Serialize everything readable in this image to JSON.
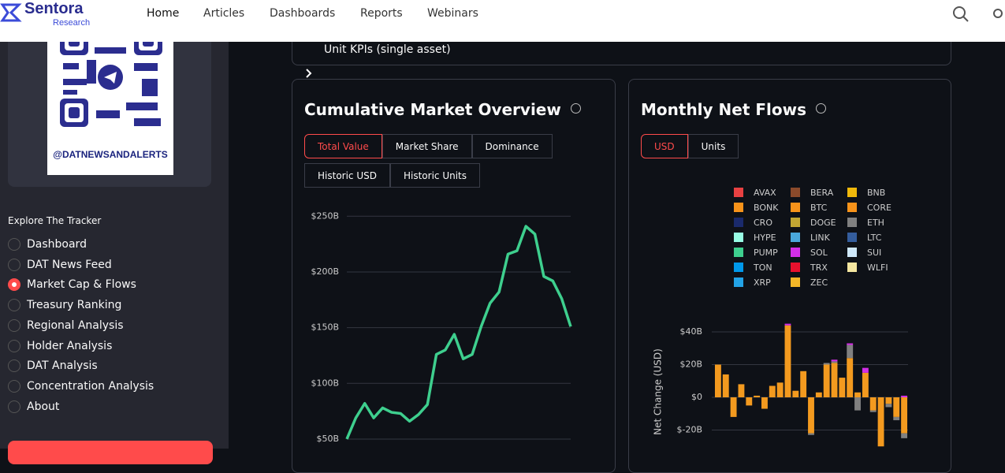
{
  "nav": {
    "brand": "Sentora",
    "sub": "Research",
    "links": [
      "Home",
      "Articles",
      "Dashboards",
      "Reports",
      "Webinars"
    ],
    "active": 0
  },
  "sidebar": {
    "handle": "@DATNEWSANDALERTS",
    "heading": "Explore The Tracker",
    "items": [
      "Dashboard",
      "DAT News Feed",
      "Market Cap & Flows",
      "Treasury Ranking",
      "Regional Analysis",
      "Holder Analysis",
      "DAT Analysis",
      "Concentration Analysis",
      "About"
    ],
    "selected": 2
  },
  "section": {
    "label": "Unit KPIs (single asset)"
  },
  "chart_data": [
    {
      "type": "line",
      "title": "Cumulative Market Overview",
      "tabs": [
        "Total Value",
        "Market Share",
        "Dominance",
        "Historic USD",
        "Historic Units"
      ],
      "active_tab": 0,
      "categories": [
        null,
        null,
        null,
        null,
        null,
        null,
        null,
        null,
        null,
        null,
        null,
        null,
        null,
        null,
        null,
        null,
        null,
        null,
        null,
        null,
        null,
        null,
        null,
        null,
        null,
        null
      ],
      "values": [
        50,
        69,
        82,
        69,
        78,
        74,
        73,
        66,
        72,
        81,
        126,
        130,
        144,
        122,
        126,
        151,
        172,
        182,
        216,
        219,
        241,
        234,
        196,
        192,
        176,
        151
      ],
      "color": "#3ecf8e",
      "ylim": [
        48,
        258
      ],
      "yticks": [
        {
          "value": 50,
          "label": "$50B"
        },
        {
          "value": 100,
          "label": "$100B"
        },
        {
          "value": 150,
          "label": "$150B"
        },
        {
          "value": 200,
          "label": "$200B"
        },
        {
          "value": 250,
          "label": "$250B"
        }
      ],
      "grid": true
    },
    {
      "type": "stacked_bar",
      "title": "Monthly Net Flows",
      "tabs": [
        "USD",
        "Units"
      ],
      "active_tab": 0,
      "y_label": "Net Change (USD)",
      "legend": [
        {
          "name": "AVAX",
          "color": "#e84142"
        },
        {
          "name": "BERA",
          "color": "#8b4a2b"
        },
        {
          "name": "BNB",
          "color": "#f0b90b"
        },
        {
          "name": "BONK",
          "color": "#f7931a"
        },
        {
          "name": "BTC",
          "color": "#f7931a"
        },
        {
          "name": "CORE",
          "color": "#f7931a"
        },
        {
          "name": "CRO",
          "color": "#1a2a6c"
        },
        {
          "name": "DOGE",
          "color": "#c2a633"
        },
        {
          "name": "ETH",
          "color": "#808080"
        },
        {
          "name": "HYPE",
          "color": "#97fce4"
        },
        {
          "name": "LINK",
          "color": "#4aa8dc"
        },
        {
          "name": "LTC",
          "color": "#345d9d"
        },
        {
          "name": "PUMP",
          "color": "#3ecf8e"
        },
        {
          "name": "SOL",
          "color": "#d42ee8"
        },
        {
          "name": "SUI",
          "color": "#cfe8fa"
        },
        {
          "name": "TON",
          "color": "#0098ea"
        },
        {
          "name": "TRX",
          "color": "#e8112d"
        },
        {
          "name": "WLFI",
          "color": "#f5e7a0"
        },
        {
          "name": "XRP",
          "color": "#23a3e6"
        },
        {
          "name": "ZEC",
          "color": "#f4b728"
        }
      ],
      "categories": [
        null,
        null,
        null,
        null,
        null,
        null,
        null,
        null,
        null,
        null,
        null,
        null,
        null,
        null,
        null,
        null,
        null,
        null,
        null,
        null,
        null,
        null,
        null,
        null,
        null
      ],
      "series": [
        {
          "name": "BTC",
          "color": "#f39a1f",
          "values": [
            20,
            14,
            -12,
            8,
            -5,
            1,
            -7,
            7,
            9,
            44,
            4,
            16,
            -22,
            3,
            20,
            21,
            12,
            24,
            3,
            15,
            -8,
            -30,
            -4,
            -12,
            -22
          ]
        },
        {
          "name": "ETH",
          "color": "#808080",
          "values": [
            0,
            0,
            0,
            0,
            0,
            0,
            0,
            0,
            0,
            0,
            0,
            0,
            -1,
            0,
            1,
            1,
            0,
            8,
            -8,
            0,
            -1,
            0,
            -2,
            -2,
            -3
          ]
        },
        {
          "name": "SOL",
          "color": "#d42ee8",
          "values": [
            0,
            0,
            0,
            0,
            0,
            0,
            0,
            0,
            0,
            1,
            0,
            0,
            0,
            0,
            0,
            1,
            0,
            1,
            0,
            3,
            0,
            0,
            0,
            0,
            1
          ]
        }
      ],
      "ylim": [
        -30,
        48
      ],
      "yticks": [
        {
          "value": -20,
          "label": "$-20B"
        },
        {
          "value": 0,
          "label": "$0"
        },
        {
          "value": 20,
          "label": "$20B"
        },
        {
          "value": 40,
          "label": "$40B"
        }
      ],
      "grid": true
    }
  ]
}
